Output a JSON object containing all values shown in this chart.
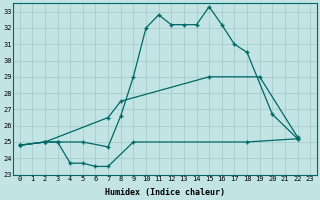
{
  "title": "",
  "xlabel": "Humidex (Indice chaleur)",
  "ylabel": "",
  "xlim": [
    -0.5,
    23.5
  ],
  "ylim": [
    23,
    33.5
  ],
  "yticks": [
    23,
    24,
    25,
    26,
    27,
    28,
    29,
    30,
    31,
    32,
    33
  ],
  "xticks": [
    0,
    1,
    2,
    3,
    4,
    5,
    6,
    7,
    8,
    9,
    10,
    11,
    12,
    13,
    14,
    15,
    16,
    17,
    18,
    19,
    20,
    21,
    22,
    23
  ],
  "bg_color": "#c2e4e4",
  "grid_color": "#b0d4d4",
  "line_color": "#006868",
  "lines": [
    {
      "x": [
        0,
        2,
        3,
        5,
        7,
        8,
        9,
        10,
        11,
        12,
        13,
        14,
        15,
        16,
        17,
        18,
        20,
        22
      ],
      "y": [
        24.8,
        25.0,
        25.0,
        25.0,
        24.7,
        26.6,
        29.0,
        32.0,
        32.8,
        32.2,
        32.2,
        32.2,
        33.3,
        32.2,
        31.0,
        30.5,
        26.7,
        25.2
      ]
    },
    {
      "x": [
        0,
        2,
        7,
        8,
        15,
        19,
        22
      ],
      "y": [
        24.8,
        25.0,
        26.5,
        27.5,
        29.0,
        29.0,
        25.3
      ]
    },
    {
      "x": [
        0,
        2,
        3,
        4,
        5,
        6,
        7,
        9,
        18,
        22
      ],
      "y": [
        24.8,
        25.0,
        25.0,
        23.7,
        23.7,
        23.5,
        23.5,
        25.0,
        25.0,
        25.2
      ]
    }
  ]
}
